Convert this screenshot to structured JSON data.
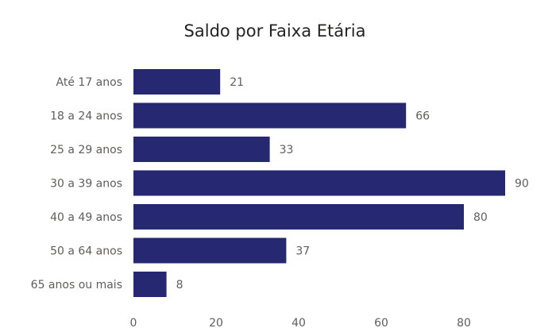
{
  "chart_data": {
    "type": "bar",
    "orientation": "horizontal",
    "title": "Saldo por Faixa Etária",
    "categories": [
      "Até 17 anos",
      "18 a 24 anos",
      "25 a 29 anos",
      "30 a 39 anos",
      "40 a 49 anos",
      "50 a 64 anos",
      "65 anos ou mais"
    ],
    "values": [
      21,
      66,
      33,
      90,
      80,
      37,
      8
    ],
    "data_labels": [
      "21",
      "66",
      "33",
      "90",
      "80",
      "37",
      "8"
    ],
    "xticks": [
      "0",
      "20",
      "40",
      "60",
      "80"
    ],
    "xlim": [
      0,
      90
    ],
    "xlabel": "",
    "ylabel": "",
    "bar_color": "#262872",
    "grid": false,
    "legend": "none"
  }
}
